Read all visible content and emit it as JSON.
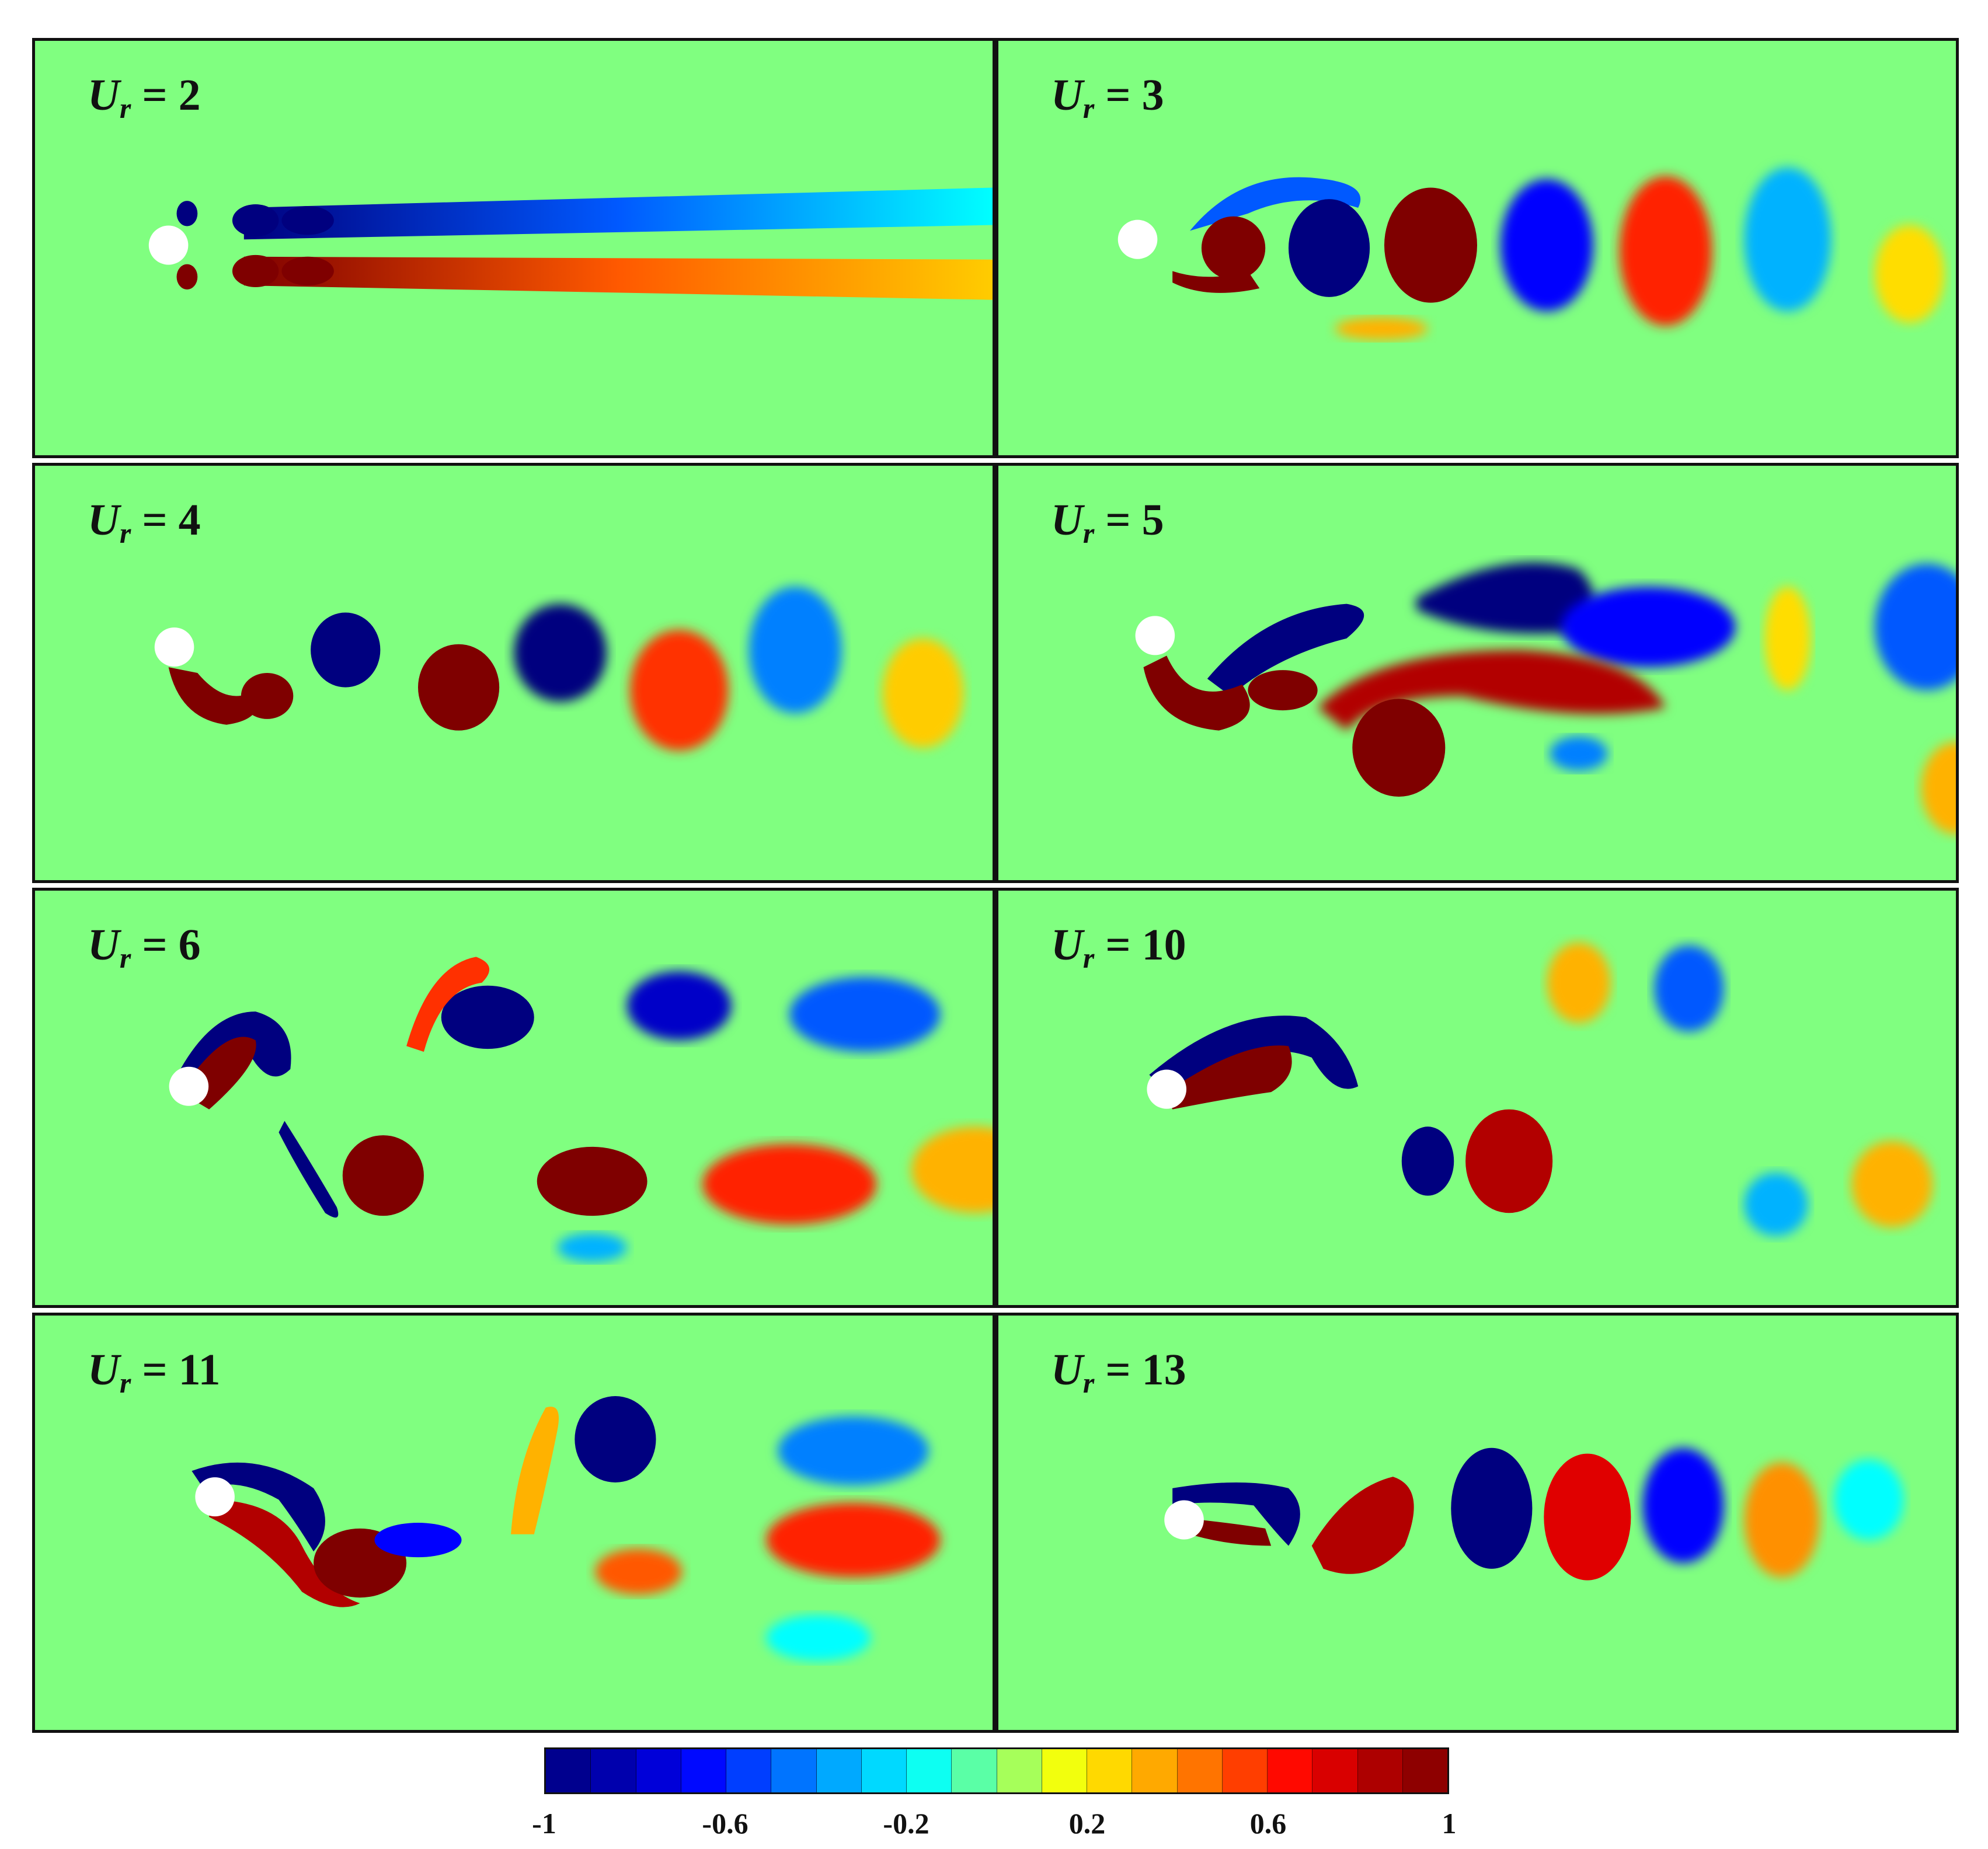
{
  "panels": [
    {
      "label_var": "U",
      "label_sub": "r",
      "label_rest": " = 2"
    },
    {
      "label_var": "U",
      "label_sub": "r",
      "label_rest": " = 3"
    },
    {
      "label_var": "U",
      "label_sub": "r",
      "label_rest": " = 4"
    },
    {
      "label_var": "U",
      "label_sub": "r",
      "label_rest": " = 5"
    },
    {
      "label_var": "U",
      "label_sub": "r",
      "label_rest": " = 6"
    },
    {
      "label_var": "U",
      "label_sub": "r",
      "label_rest": " = 10"
    },
    {
      "label_var": "U",
      "label_sub": "r",
      "label_rest": " = 11"
    },
    {
      "label_var": "U",
      "label_sub": "r",
      "label_rest": " = 13"
    }
  ],
  "colorbar": {
    "min": -1,
    "max": 1,
    "levels": 20,
    "ticks": [
      "-1",
      "-0.6",
      "-0.2",
      "0.2",
      "0.6",
      "1"
    ],
    "colors": [
      "#00007f",
      "#0000b2",
      "#0000ff",
      "#0059ff",
      "#00b2ff",
      "#00ffff",
      "#80ff80",
      "#ffff00",
      "#ffb200",
      "#ff5900",
      "#ff0000",
      "#b20000",
      "#7f0000"
    ]
  },
  "field_colors": {
    "background": "#80ff80",
    "cylinder": "#ffffff"
  }
}
